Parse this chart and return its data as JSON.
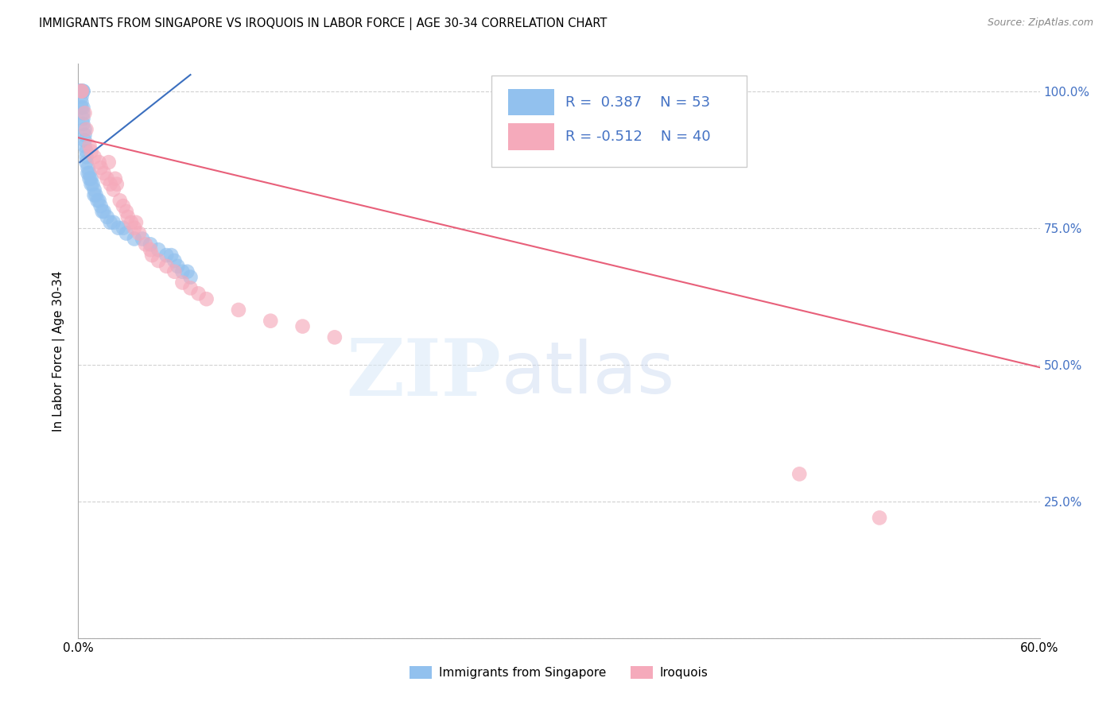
{
  "title": "IMMIGRANTS FROM SINGAPORE VS IROQUOIS IN LABOR FORCE | AGE 30-34 CORRELATION CHART",
  "source_text": "Source: ZipAtlas.com",
  "ylabel": "In Labor Force | Age 30-34",
  "xlim": [
    0.0,
    0.6
  ],
  "ylim": [
    0.0,
    1.05
  ],
  "legend_r_blue": "0.387",
  "legend_n_blue": "53",
  "legend_r_pink": "-0.512",
  "legend_n_pink": "40",
  "blue_color": "#92C1EE",
  "pink_color": "#F5AABB",
  "blue_line_color": "#3B6FBF",
  "pink_line_color": "#E8607A",
  "grid_color": "#CCCCCC",
  "blue_scatter_x": [
    0.001,
    0.001,
    0.001,
    0.002,
    0.002,
    0.002,
    0.002,
    0.002,
    0.003,
    0.003,
    0.003,
    0.003,
    0.003,
    0.003,
    0.004,
    0.004,
    0.004,
    0.004,
    0.005,
    0.005,
    0.005,
    0.006,
    0.006,
    0.007,
    0.007,
    0.008,
    0.008,
    0.009,
    0.01,
    0.01,
    0.011,
    0.012,
    0.013,
    0.014,
    0.015,
    0.016,
    0.018,
    0.02,
    0.022,
    0.025,
    0.028,
    0.03,
    0.035,
    0.04,
    0.045,
    0.05,
    0.055,
    0.058,
    0.06,
    0.062,
    0.065,
    0.068,
    0.07
  ],
  "blue_scatter_y": [
    1.0,
    1.0,
    1.0,
    1.0,
    1.0,
    0.99,
    0.98,
    0.97,
    1.0,
    1.0,
    0.97,
    0.96,
    0.95,
    0.94,
    0.93,
    0.92,
    0.91,
    0.9,
    0.89,
    0.88,
    0.87,
    0.86,
    0.85,
    0.85,
    0.84,
    0.84,
    0.83,
    0.83,
    0.82,
    0.81,
    0.81,
    0.8,
    0.8,
    0.79,
    0.78,
    0.78,
    0.77,
    0.76,
    0.76,
    0.75,
    0.75,
    0.74,
    0.73,
    0.73,
    0.72,
    0.71,
    0.7,
    0.7,
    0.69,
    0.68,
    0.67,
    0.67,
    0.66
  ],
  "blue_line_x": [
    0.001,
    0.07
  ],
  "blue_line_y": [
    0.87,
    1.03
  ],
  "pink_line_x": [
    0.0,
    0.6
  ],
  "pink_line_y": [
    0.915,
    0.495
  ],
  "pink_scatter_x": [
    0.002,
    0.002,
    0.004,
    0.005,
    0.007,
    0.008,
    0.01,
    0.013,
    0.014,
    0.016,
    0.018,
    0.019,
    0.02,
    0.022,
    0.023,
    0.024,
    0.026,
    0.028,
    0.03,
    0.031,
    0.033,
    0.035,
    0.036,
    0.038,
    0.042,
    0.045,
    0.046,
    0.05,
    0.055,
    0.06,
    0.065,
    0.07,
    0.075,
    0.08,
    0.1,
    0.12,
    0.14,
    0.16,
    0.45,
    0.5
  ],
  "pink_scatter_y": [
    1.0,
    1.0,
    0.96,
    0.93,
    0.9,
    0.89,
    0.88,
    0.87,
    0.86,
    0.85,
    0.84,
    0.87,
    0.83,
    0.82,
    0.84,
    0.83,
    0.8,
    0.79,
    0.78,
    0.77,
    0.76,
    0.75,
    0.76,
    0.74,
    0.72,
    0.71,
    0.7,
    0.69,
    0.68,
    0.67,
    0.65,
    0.64,
    0.63,
    0.62,
    0.6,
    0.58,
    0.57,
    0.55,
    0.3,
    0.22
  ]
}
